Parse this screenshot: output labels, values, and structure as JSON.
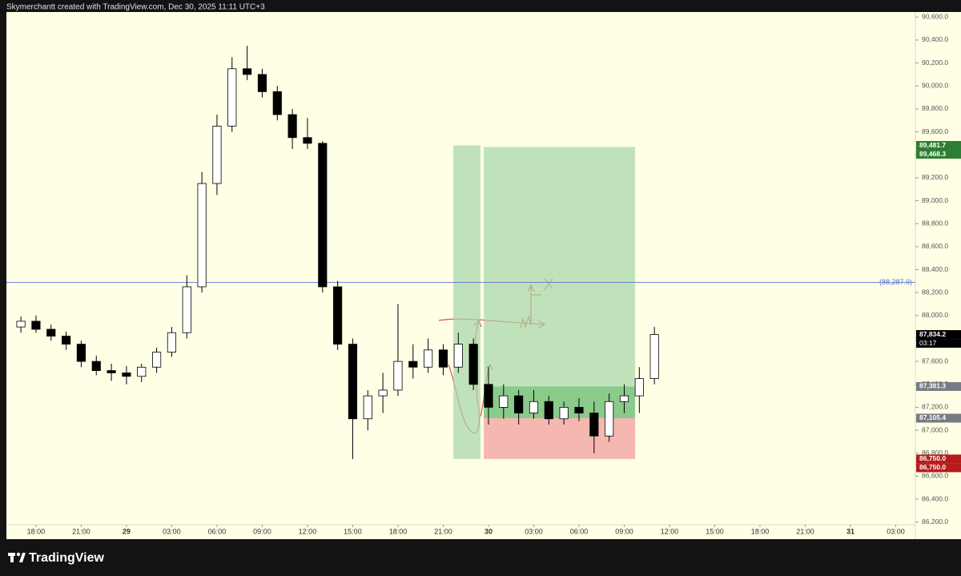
{
  "header": "Skymerchantt created with TradingView.com, Dec 30, 2025 11:11 UTC+3",
  "footer": "TradingView",
  "chart_data": {
    "type": "candlestick",
    "up_color": "#ffffff",
    "down_color": "#000000",
    "xlim": [
      -1.96,
      58.3
    ],
    "xticks": [
      {
        "value": 0,
        "label": "18:00"
      },
      {
        "value": 3,
        "label": "21:00"
      },
      {
        "value": 6,
        "label": "29"
      },
      {
        "value": 9,
        "label": "03:00"
      },
      {
        "value": 12,
        "label": "06:00"
      },
      {
        "value": 15,
        "label": "09:00"
      },
      {
        "value": 18,
        "label": "12:00"
      },
      {
        "value": 21,
        "label": "15:00"
      },
      {
        "value": 24,
        "label": "18:00"
      },
      {
        "value": 27,
        "label": "21:00"
      },
      {
        "value": 30,
        "label": "30"
      },
      {
        "value": 33,
        "label": "03:00"
      },
      {
        "value": 36,
        "label": "06:00"
      },
      {
        "value": 39,
        "label": "09:00"
      },
      {
        "value": 42,
        "label": "12:00"
      },
      {
        "value": 45,
        "label": "15:00"
      },
      {
        "value": 48,
        "label": "18:00"
      },
      {
        "value": 51,
        "label": "21:00"
      },
      {
        "value": 54,
        "label": "31"
      },
      {
        "value": 57,
        "label": "03:00"
      }
    ],
    "ylim": [
      86177,
      90644
    ],
    "yticks": [
      {
        "value": 86200,
        "label": "86,200.0"
      },
      {
        "value": 86400,
        "label": "86,400.0"
      },
      {
        "value": 86600,
        "label": "86,600.0"
      },
      {
        "value": 86800,
        "label": "86,800.0"
      },
      {
        "value": 87000,
        "label": "87,000.0"
      },
      {
        "value": 87200,
        "label": "87,200.0"
      },
      {
        "value": 87400,
        "label": "87,400.0"
      },
      {
        "value": 87600,
        "label": "87,600.0"
      },
      {
        "value": 87800,
        "label": "87,800.0"
      },
      {
        "value": 88000,
        "label": "88,000.0"
      },
      {
        "value": 88200,
        "label": "88,200.0"
      },
      {
        "value": 88400,
        "label": "88,400.0"
      },
      {
        "value": 88600,
        "label": "88,600.0"
      },
      {
        "value": 88800,
        "label": "88,800.0"
      },
      {
        "value": 89000,
        "label": "89,000.0"
      },
      {
        "value": 89200,
        "label": "89,200.0"
      },
      {
        "value": 89400,
        "label": "89,400.0"
      },
      {
        "value": 89600,
        "label": "89,600.0"
      },
      {
        "value": 89800,
        "label": "89,800.0"
      },
      {
        "value": 90000,
        "label": "90,000.0"
      },
      {
        "value": 90200,
        "label": "90,200.0"
      },
      {
        "value": 90400,
        "label": "90,400.0"
      },
      {
        "value": 90600,
        "label": "90,600.0"
      }
    ],
    "x": [
      -1,
      0,
      1,
      2,
      3,
      4,
      5,
      6,
      7,
      8,
      9,
      10,
      11,
      12,
      13,
      14,
      15,
      16,
      17,
      18,
      19,
      20,
      21,
      22,
      23,
      24,
      25,
      26,
      27,
      28,
      29,
      30,
      31,
      32,
      33,
      34,
      35,
      36,
      37,
      38,
      39,
      40,
      41
    ],
    "open": [
      87900,
      87950,
      87880,
      87820,
      87750,
      87600,
      87520,
      87500,
      87470,
      87550,
      87680,
      87850,
      88250,
      89150,
      89650,
      90150,
      90100,
      89950,
      89750,
      89550,
      89500,
      88250,
      87750,
      87100,
      87300,
      87350,
      87600,
      87550,
      87700,
      87550,
      87750,
      87400,
      87200,
      87300,
      87150,
      87250,
      87100,
      87200,
      87150,
      86950,
      87250,
      87300,
      87450
    ],
    "high": [
      87990,
      88000,
      87920,
      87860,
      87780,
      87650,
      87580,
      87560,
      87580,
      87720,
      87900,
      88350,
      89250,
      89750,
      90250,
      90350,
      90150,
      90000,
      89800,
      89720,
      89520,
      88300,
      87800,
      87350,
      87500,
      88100,
      87750,
      87800,
      87750,
      87850,
      87800,
      87550,
      87400,
      87350,
      87350,
      87300,
      87250,
      87280,
      87250,
      87320,
      87400,
      87550,
      87900
    ],
    "low": [
      87850,
      87850,
      87780,
      87700,
      87550,
      87480,
      87430,
      87400,
      87420,
      87500,
      87640,
      87800,
      88200,
      89050,
      89600,
      90050,
      89900,
      89700,
      89450,
      89450,
      88200,
      87700,
      86750,
      87000,
      87150,
      87300,
      87450,
      87500,
      87480,
      87500,
      87350,
      87050,
      87100,
      87050,
      87100,
      87050,
      87050,
      87080,
      86800,
      86900,
      87150,
      87150,
      87400
    ],
    "close": [
      87950,
      87880,
      87820,
      87750,
      87600,
      87520,
      87500,
      87470,
      87550,
      87680,
      87850,
      88250,
      89150,
      89650,
      90150,
      90100,
      89950,
      89750,
      89550,
      89500,
      88250,
      87750,
      87100,
      87300,
      87350,
      87600,
      87550,
      87700,
      87550,
      87750,
      87400,
      87200,
      87300,
      87150,
      87250,
      87100,
      87200,
      87150,
      86950,
      87250,
      87300,
      87450,
      87834.2
    ],
    "positions": [
      {
        "x": [
          27.67,
          29.47
        ],
        "target": 89481.7,
        "stop": 86750
      },
      {
        "x": [
          29.69,
          39.72
        ],
        "target": 89468.3,
        "entry": 87105.4,
        "current": 87381.3,
        "stop": 86750
      }
    ],
    "hline": {
      "value": 88287.9,
      "label": "(88,287.9)",
      "color": "#5b74d6"
    },
    "price_labels": [
      {
        "value": 89481.7,
        "label": "89,481.7",
        "color": "#2e7d32"
      },
      {
        "value": 89468.3,
        "label": "89,468.3",
        "color": "#2e7d32"
      },
      {
        "value": 87834.2,
        "label": "87,834.2",
        "color": "#000000"
      },
      {
        "value": 87381.3,
        "label": "87,381.3",
        "color": "#787b86"
      },
      {
        "value": 87105.4,
        "label": "87,105.4",
        "color": "#787b86"
      },
      {
        "value": 86750,
        "label": "86,750.0",
        "color": "#b71c1c"
      },
      {
        "value": 86750,
        "label": "86,750.0",
        "color": "#b71c1c"
      }
    ],
    "countdown": "03:17"
  }
}
